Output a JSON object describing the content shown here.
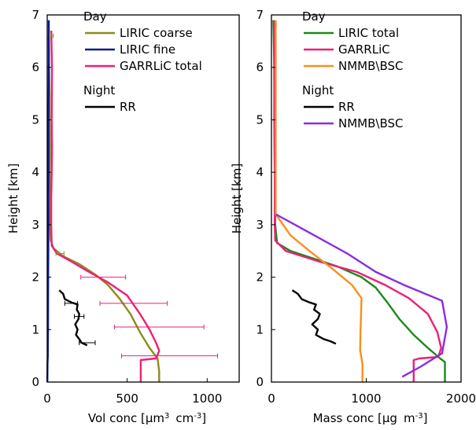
{
  "chart_data": [
    {
      "type": "line",
      "xlabel": "Vol conc [µm³ cm⁻³]",
      "xlabel_parts": {
        "main": "Vol conc [µm",
        "sup1": "3",
        "mid": "cm",
        "sup2": "-3",
        "end": "]"
      },
      "ylabel": "Height [km]",
      "xlim": [
        0,
        1200
      ],
      "ylim": [
        0,
        7
      ],
      "xticks": [
        0,
        500,
        1000
      ],
      "yticks": [
        0,
        1,
        2,
        3,
        4,
        5,
        6,
        7
      ],
      "legend_placement": "top-right",
      "legend_groups": [
        {
          "title": "Day",
          "entries": [
            "LIRIC coarse",
            "LIRIC fine",
            "GARRLiC total"
          ]
        },
        {
          "title": "Night",
          "entries": [
            "RR"
          ]
        }
      ],
      "series": [
        {
          "name": "LIRIC coarse",
          "color": "#8b8b1e",
          "points": [
            [
              10,
              6.6
            ],
            [
              12,
              6.0
            ],
            [
              15,
              5.5
            ],
            [
              15,
              5.0
            ],
            [
              18,
              4.5
            ],
            [
              15,
              4.0
            ],
            [
              20,
              3.5
            ],
            [
              18,
              3.0
            ],
            [
              22,
              2.7
            ],
            [
              40,
              2.55
            ],
            [
              100,
              2.4
            ],
            [
              200,
              2.25
            ],
            [
              300,
              2.05
            ],
            [
              380,
              1.85
            ],
            [
              450,
              1.6
            ],
            [
              520,
              1.3
            ],
            [
              580,
              0.95
            ],
            [
              640,
              0.65
            ],
            [
              690,
              0.45
            ],
            [
              700,
              0.2
            ],
            [
              700,
              0
            ]
          ]
        },
        {
          "name": "LIRIC fine",
          "color": "#0a1a8c",
          "points": [
            [
              10,
              6.9
            ],
            [
              10,
              6.0
            ],
            [
              8,
              5.0
            ],
            [
              8,
              4.0
            ],
            [
              8,
              3.0
            ],
            [
              6,
              2.0
            ],
            [
              5,
              1.0
            ],
            [
              4,
              0.5
            ],
            [
              2,
              0.35
            ],
            [
              1,
              0
            ]
          ]
        },
        {
          "name": "GARRLiC total",
          "color": "#ee1f78",
          "points": [
            [
              25,
              6.7
            ],
            [
              30,
              6.0
            ],
            [
              28,
              5.0
            ],
            [
              30,
              4.5
            ],
            [
              28,
              4.0
            ],
            [
              25,
              3.5
            ],
            [
              25,
              3.0
            ],
            [
              28,
              2.6
            ],
            [
              60,
              2.45
            ],
            [
              150,
              2.3
            ],
            [
              250,
              2.12
            ],
            [
              380,
              1.9
            ],
            [
              500,
              1.65
            ],
            [
              580,
              1.3
            ],
            [
              640,
              1.0
            ],
            [
              680,
              0.75
            ],
            [
              700,
              0.6
            ],
            [
              680,
              0.45
            ],
            [
              585,
              0.42
            ],
            [
              585,
              0
            ]
          ]
        },
        {
          "name": "RR",
          "color": "#000000",
          "points": [
            [
              75,
              1.75
            ],
            [
              100,
              1.68
            ],
            [
              110,
              1.58
            ],
            [
              150,
              1.52
            ],
            [
              190,
              1.48
            ],
            [
              185,
              1.38
            ],
            [
              200,
              1.3
            ],
            [
              195,
              1.2
            ],
            [
              175,
              1.1
            ],
            [
              190,
              1.0
            ],
            [
              180,
              0.9
            ],
            [
              200,
              0.82
            ],
            [
              215,
              0.75
            ],
            [
              250,
              0.7
            ]
          ]
        }
      ],
      "error_bars": [
        {
          "color": "#8b8b1e",
          "y": 6.6,
          "x": 30,
          "err": 8
        },
        {
          "color": "#8b8b1e",
          "y": 2.45,
          "x": 80,
          "err": 25
        },
        {
          "color": "#ee1f78",
          "y": 2.0,
          "x": 350,
          "err": 140
        },
        {
          "color": "#ee1f78",
          "y": 1.5,
          "x": 540,
          "err": 210
        },
        {
          "color": "#ee1f78",
          "y": 1.05,
          "x": 700,
          "err": 280
        },
        {
          "color": "#ee1f78",
          "y": 0.5,
          "x": 765,
          "err": 300
        },
        {
          "color": "#000000",
          "y": 1.5,
          "x": 150,
          "err": 40
        },
        {
          "color": "#000000",
          "y": 1.25,
          "x": 200,
          "err": 30
        },
        {
          "color": "#000000",
          "y": 0.75,
          "x": 250,
          "err": 50
        }
      ]
    },
    {
      "type": "line",
      "xlabel": "Mass conc [µg m⁻³]",
      "xlabel_parts": {
        "main": "Mass conc [µg",
        "mid": "m",
        "sup2": "-3",
        "end": "]"
      },
      "ylabel": "Height [km]",
      "xlim": [
        0,
        2000
      ],
      "ylim": [
        0,
        7
      ],
      "xticks": [
        0,
        1000,
        2000
      ],
      "yticks": [
        0,
        1,
        2,
        3,
        4,
        5,
        6,
        7
      ],
      "legend_placement": "top-right",
      "legend_groups": [
        {
          "title": "Day",
          "entries": [
            "LIRIC total",
            "GARRLiC",
            "NMMB\\BSC"
          ]
        },
        {
          "title": "Night",
          "entries": [
            "RR",
            "NMMB\\BSC"
          ]
        }
      ],
      "series": [
        {
          "name": "LIRIC total",
          "color": "#1a8a1a",
          "points": [
            [
              20,
              6.9
            ],
            [
              30,
              6.0
            ],
            [
              30,
              5.0
            ],
            [
              35,
              4.0
            ],
            [
              40,
              3.0
            ],
            [
              60,
              2.65
            ],
            [
              200,
              2.5
            ],
            [
              450,
              2.35
            ],
            [
              700,
              2.2
            ],
            [
              950,
              2.0
            ],
            [
              1100,
              1.8
            ],
            [
              1230,
              1.5
            ],
            [
              1350,
              1.2
            ],
            [
              1500,
              0.9
            ],
            [
              1650,
              0.65
            ],
            [
              1780,
              0.45
            ],
            [
              1830,
              0.38
            ],
            [
              1830,
              0
            ]
          ]
        },
        {
          "name": "GARRLiC",
          "color": "#ee1f78",
          "points": [
            [
              30,
              6.9
            ],
            [
              30,
              6.0
            ],
            [
              32,
              5.0
            ],
            [
              35,
              4.0
            ],
            [
              35,
              3.0
            ],
            [
              40,
              2.7
            ],
            [
              150,
              2.5
            ],
            [
              500,
              2.3
            ],
            [
              900,
              2.1
            ],
            [
              1200,
              1.85
            ],
            [
              1450,
              1.6
            ],
            [
              1650,
              1.3
            ],
            [
              1750,
              0.95
            ],
            [
              1790,
              0.65
            ],
            [
              1760,
              0.48
            ],
            [
              1560,
              0.45
            ],
            [
              1500,
              0.42
            ],
            [
              1500,
              0
            ]
          ]
        },
        {
          "name": "NMMB\\BSC",
          "color": "#f7901e",
          "points": [
            [
              45,
              6.9
            ],
            [
              45,
              6.0
            ],
            [
              45,
              5.0
            ],
            [
              45,
              4.0
            ],
            [
              45,
              3.2
            ],
            [
              200,
              2.8
            ],
            [
              400,
              2.5
            ],
            [
              650,
              2.15
            ],
            [
              850,
              1.85
            ],
            [
              950,
              1.6
            ],
            [
              940,
              1.0
            ],
            [
              935,
              0.6
            ],
            [
              960,
              0.35
            ],
            [
              960,
              0
            ]
          ]
        },
        {
          "name": "RR",
          "color": "#000000",
          "points": [
            [
              220,
              1.75
            ],
            [
              280,
              1.68
            ],
            [
              320,
              1.58
            ],
            [
              400,
              1.52
            ],
            [
              470,
              1.48
            ],
            [
              450,
              1.38
            ],
            [
              510,
              1.3
            ],
            [
              490,
              1.2
            ],
            [
              430,
              1.1
            ],
            [
              490,
              1.0
            ],
            [
              470,
              0.9
            ],
            [
              550,
              0.82
            ],
            [
              620,
              0.78
            ],
            [
              680,
              0.73
            ]
          ]
        },
        {
          "name": "NMMB\\BSC",
          "color": "#8b2be2",
          "points": [
            [
              45,
              3.2
            ],
            [
              400,
              2.85
            ],
            [
              800,
              2.45
            ],
            [
              1100,
              2.1
            ],
            [
              1400,
              1.85
            ],
            [
              1800,
              1.55
            ],
            [
              1850,
              1.05
            ],
            [
              1800,
              0.55
            ],
            [
              1580,
              0.3
            ],
            [
              1380,
              0.1
            ]
          ]
        }
      ]
    }
  ]
}
